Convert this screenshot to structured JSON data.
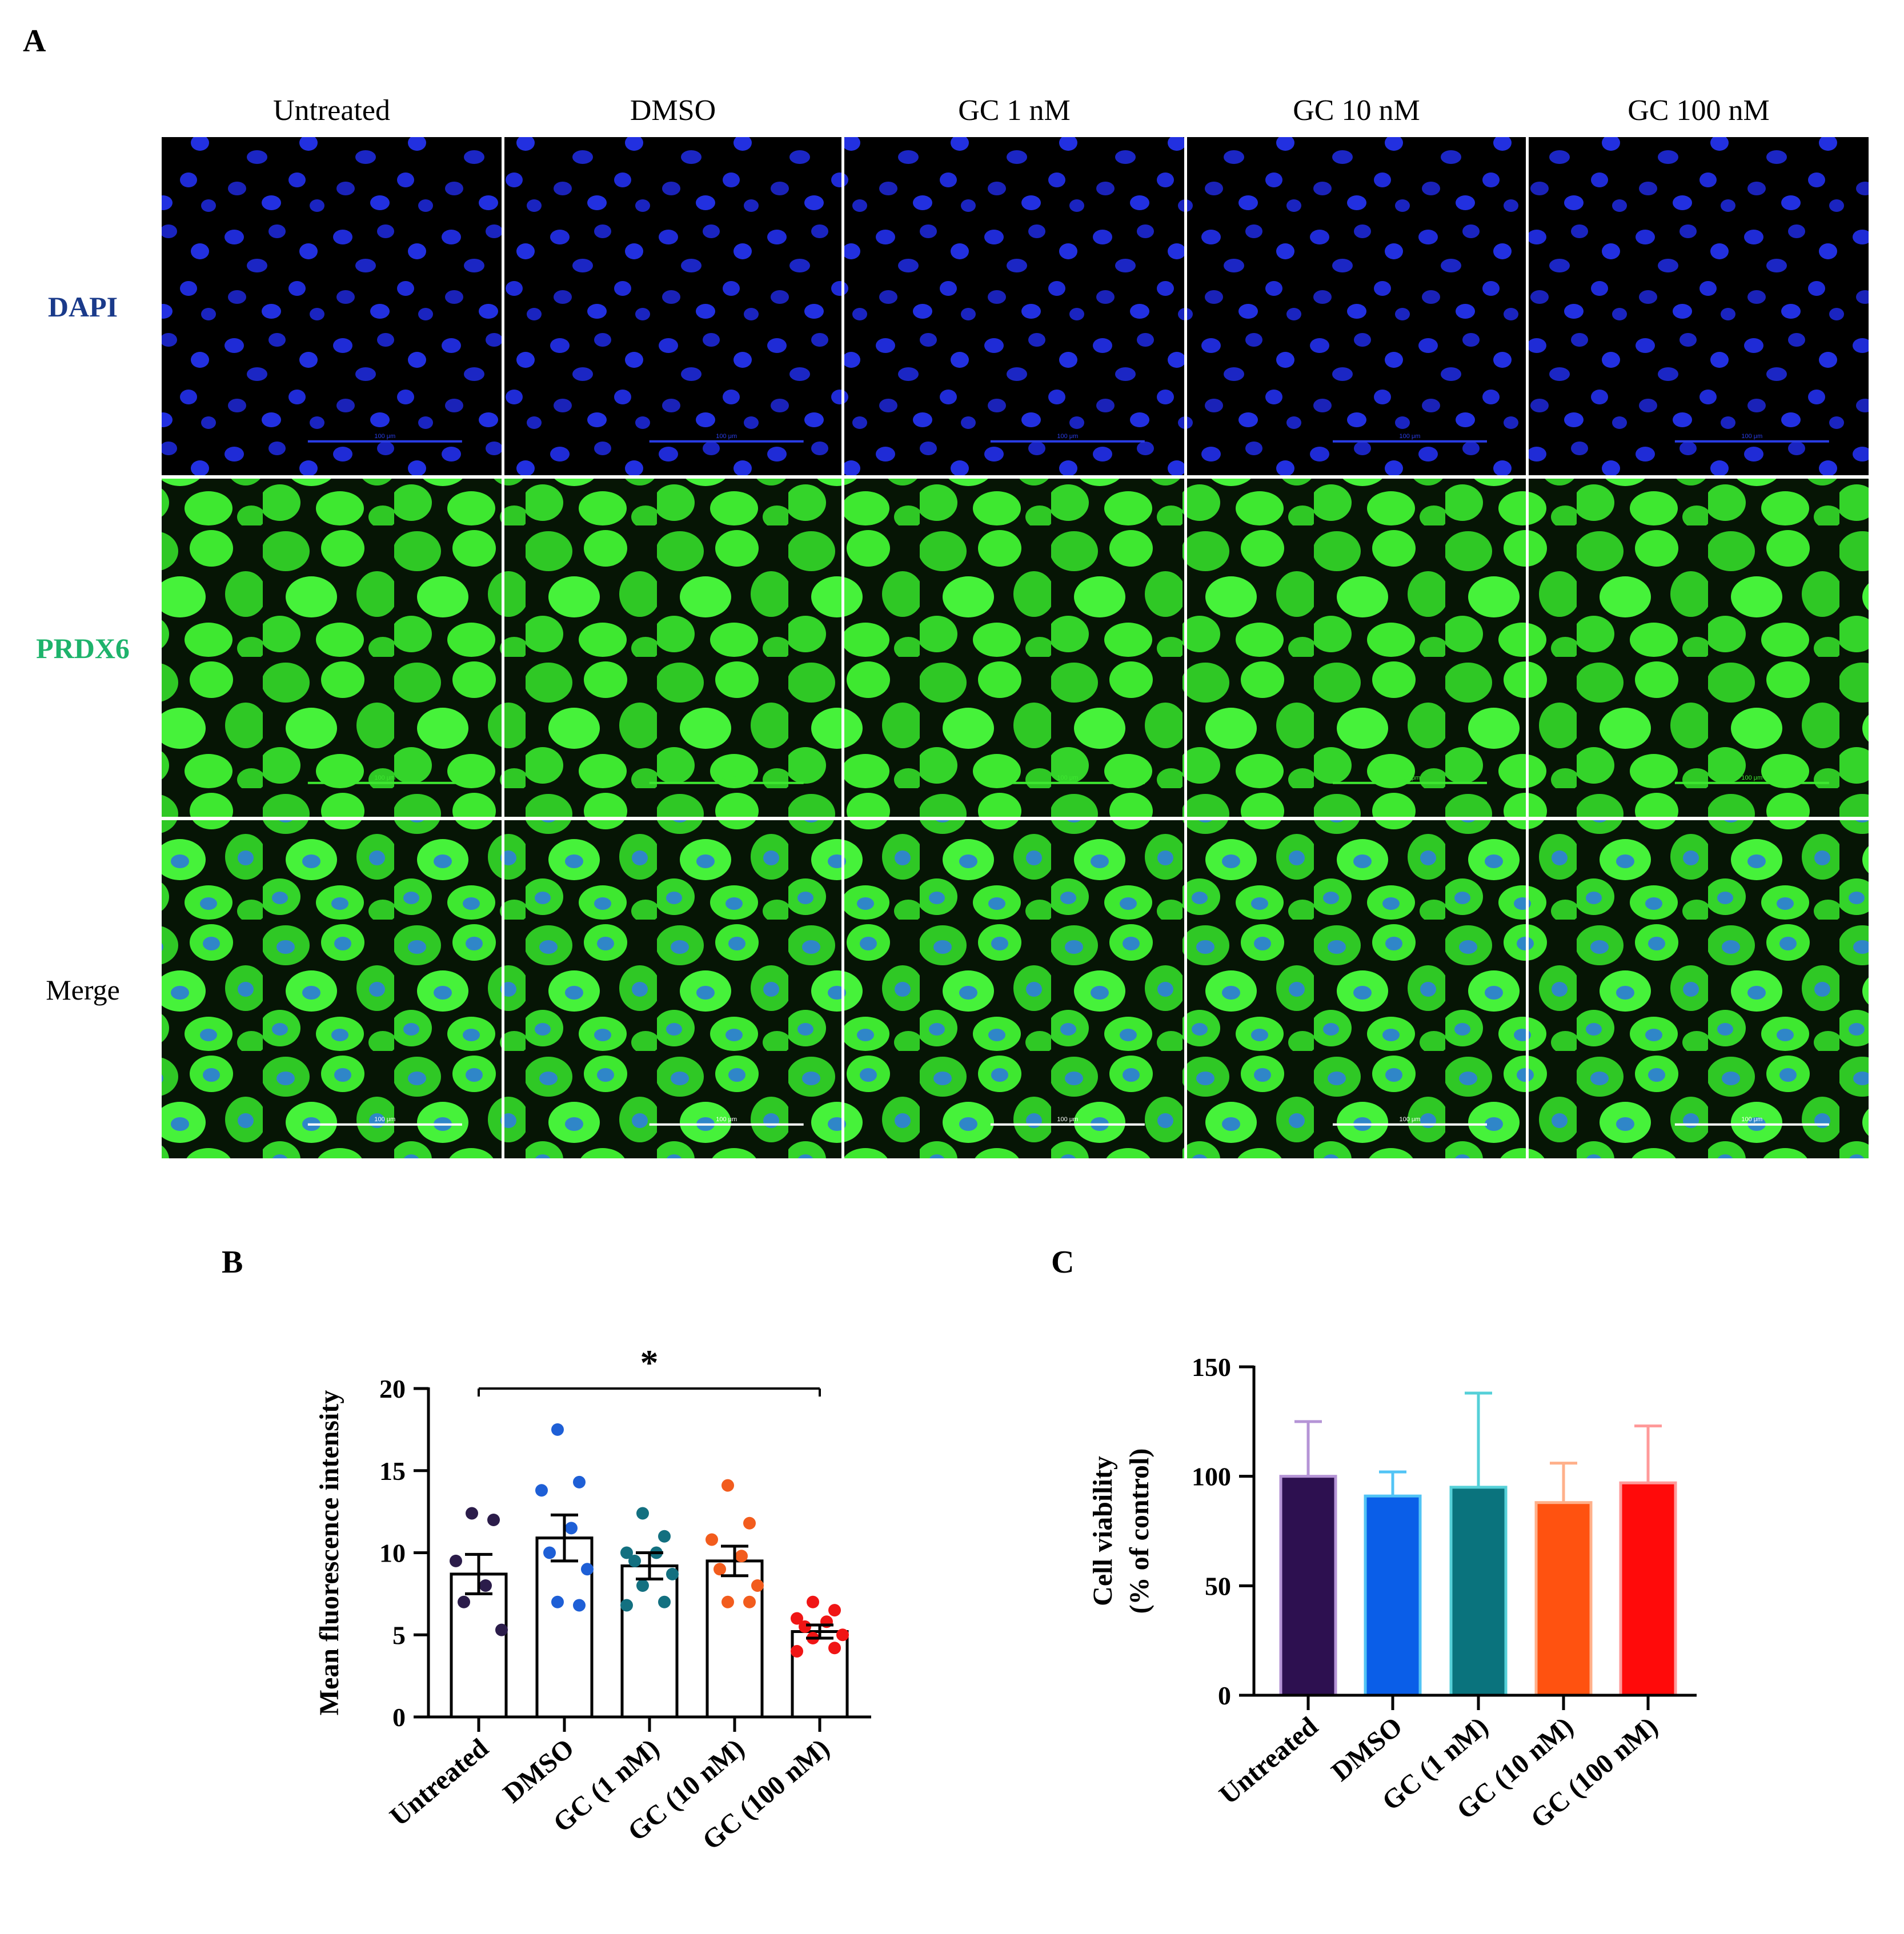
{
  "panels": {
    "a": "A",
    "b": "B",
    "c": "C"
  },
  "micrographs": {
    "columns": [
      "Untreated",
      "DMSO",
      "GC 1 nM",
      "GC 10 nM",
      "GC 100 nM"
    ],
    "rows": [
      {
        "label": "DAPI",
        "color": "#1a3a8a",
        "channel": "dapi"
      },
      {
        "label": "PRDX6",
        "color": "#1db36b",
        "channel": "prdx6"
      },
      {
        "label": "Merge",
        "color": "#000000",
        "channel": "merge"
      }
    ],
    "scale_bar_label": "100 μm",
    "channel_colors": {
      "dapi": "#1f2bd6",
      "prdx6": "#3ee830",
      "merge_nucleus": "#2f86c8"
    }
  },
  "chart_data": [
    {
      "type": "bar",
      "panel": "B",
      "categories": [
        "Untreated",
        "DMSO",
        "GC (1 nM)",
        "GC (10 nM)",
        "GC (100 nM)"
      ],
      "values": [
        8.7,
        10.9,
        9.2,
        9.5,
        5.2
      ],
      "sem": [
        1.2,
        1.4,
        0.8,
        0.9,
        0.4
      ],
      "points": [
        [
          12.4,
          12.0,
          9.5,
          8.0,
          7.0,
          5.3
        ],
        [
          17.5,
          14.3,
          13.8,
          11.5,
          10.0,
          9.0,
          7.0,
          6.8
        ],
        [
          12.4,
          11.0,
          10.0,
          10.0,
          9.5,
          8.7,
          8.0,
          7.0,
          6.8
        ],
        [
          14.1,
          11.8,
          10.8,
          9.8,
          9.0,
          8.0,
          7.0,
          7.0
        ],
        [
          7.0,
          6.5,
          6.0,
          5.8,
          5.5,
          5.0,
          4.8,
          4.2,
          4.0
        ]
      ],
      "point_colors": [
        "#2b1c4a",
        "#1e5fd6",
        "#137080",
        "#f25c1d",
        "#f01515"
      ],
      "bar_fill": "#ffffff",
      "ylabel": "Mean fluorescence intensity",
      "ylim": [
        0,
        20
      ],
      "yticks": [
        0,
        5,
        10,
        15,
        20
      ],
      "significance": {
        "from": 0,
        "to": 4,
        "label": "*"
      }
    },
    {
      "type": "bar",
      "panel": "C",
      "categories": [
        "Untreated",
        "DMSO",
        "GC (1 nM)",
        "GC (10 nM)",
        "GC (100 nM)"
      ],
      "values": [
        100,
        91,
        95,
        88,
        97
      ],
      "error_up": [
        25,
        11,
        43,
        18,
        26
      ],
      "bar_colors": [
        "#2d1050",
        "#0a5ee8",
        "#0a737d",
        "#ff5210",
        "#ff0a0a"
      ],
      "error_colors": [
        "#b594d6",
        "#52c4f5",
        "#55d0d8",
        "#ffb08a",
        "#ff9a9a"
      ],
      "ylabel": "Cell viability",
      "ylabel2": "(% of control)",
      "ylim": [
        0,
        150
      ],
      "yticks": [
        0,
        50,
        100,
        150
      ]
    }
  ]
}
